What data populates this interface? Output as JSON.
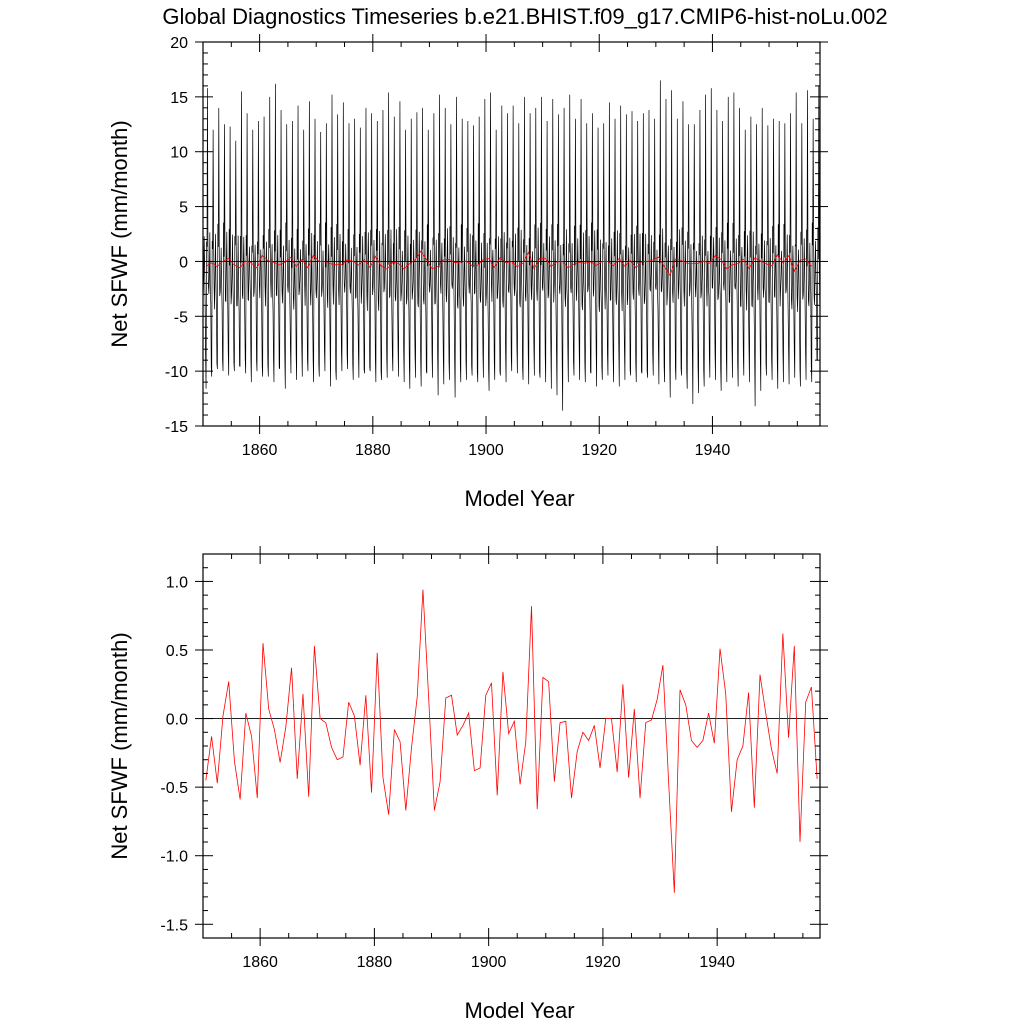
{
  "title": "Global Diagnostics Timeseries b.e21.BHIST.f09_g17.CMIP6-hist-noLu.002",
  "colors": {
    "monthly": "#000000",
    "annual": "#ff0000",
    "zero_line": "#000000"
  },
  "chart_data": [
    {
      "type": "line",
      "xlabel": "Model Year",
      "ylabel": "Net SFWF (mm/month)",
      "xlim": [
        1850,
        1959
      ],
      "ylim": [
        -15,
        20
      ],
      "xticks": [
        1860,
        1880,
        1900,
        1920,
        1940
      ],
      "xtick_labels": [
        "1860",
        "1880",
        "1900",
        "1920",
        "1940"
      ],
      "yticks": [
        -15,
        -10,
        -5,
        0,
        5,
        10,
        15,
        20
      ],
      "ytick_labels": [
        "-15",
        "-10",
        "-5",
        "0",
        "5",
        "10",
        "15",
        "20"
      ],
      "reference_line": 0,
      "grid": false,
      "series": [
        {
          "style": "monthly seasonal cycle, 12 values per year (approximate)",
          "x_start": 1850.04,
          "x_step": 0.0833333,
          "annual_cycle_approx": [
            -3.5,
            -1.0,
            2.0,
            -1.5,
            -4.0,
            -9.0,
            -11.0,
            2.5,
            0.5,
            15.0,
            1.0,
            -3.0
          ],
          "annual_peak_max": [
            15.8,
            12.0,
            14.0,
            12.5,
            12.3,
            11.0,
            15.5,
            13.5,
            12.0,
            12.8,
            13.2,
            15.0,
            16.2,
            13.8,
            12.5,
            12.8,
            14.2,
            12.0,
            14.6,
            13.0,
            11.8,
            12.6,
            15.2,
            13.4,
            14.5,
            12.6,
            13.0,
            12.2,
            14.0,
            13.5,
            12.8,
            13.8,
            15.4,
            13.2,
            14.6,
            12.0,
            13.0,
            13.6,
            14.0,
            12.0,
            13.5,
            15.2,
            14.0,
            12.5,
            15.0,
            13.0,
            12.8,
            12.4,
            13.2,
            14.8,
            15.4,
            12.0,
            14.2,
            13.5,
            14.2,
            12.6,
            15.0,
            13.5,
            14.0,
            15.0,
            12.8,
            14.8,
            13.4,
            14.0,
            15.2,
            13.0,
            14.8,
            12.6,
            13.5,
            12.2,
            12.6,
            14.5,
            13.0,
            14.2,
            13.4,
            13.7,
            12.8,
            13.5,
            13.8,
            13.0,
            16.5,
            14.8,
            15.6,
            13.0,
            14.6,
            12.5,
            12.5,
            13.8,
            15.2,
            15.8,
            13.8,
            12.8,
            15.0,
            15.4,
            14.0,
            12.0,
            13.2,
            12.5,
            14.0,
            12.4,
            13.0,
            12.8,
            12.6,
            13.5,
            15.4,
            12.6,
            15.6,
            13.0,
            16.0
          ],
          "annual_trough_min": [
            -11.6,
            -10.5,
            -9.8,
            -10.0,
            -10.4,
            -10.0,
            -9.6,
            -10.2,
            -11.0,
            -10.0,
            -10.5,
            -10.5,
            -11.0,
            -9.8,
            -11.6,
            -10.2,
            -10.8,
            -10.5,
            -10.0,
            -11.0,
            -10.5,
            -10.0,
            -11.4,
            -10.8,
            -10.0,
            -9.8,
            -10.8,
            -10.6,
            -10.2,
            -10.0,
            -11.0,
            -10.8,
            -10.6,
            -10.0,
            -10.5,
            -11.0,
            -11.6,
            -10.6,
            -11.4,
            -10.2,
            -10.6,
            -12.2,
            -11.2,
            -10.8,
            -12.4,
            -11.0,
            -10.8,
            -10.4,
            -11.0,
            -10.6,
            -11.8,
            -10.8,
            -10.4,
            -11.0,
            -10.0,
            -10.2,
            -10.8,
            -11.2,
            -10.4,
            -10.6,
            -11.0,
            -11.6,
            -12.2,
            -13.6,
            -11.0,
            -10.4,
            -10.8,
            -11.0,
            -10.2,
            -11.4,
            -10.8,
            -10.4,
            -11.0,
            -11.4,
            -10.8,
            -10.4,
            -11.0,
            -10.2,
            -10.6,
            -10.4,
            -11.2,
            -11.0,
            -12.4,
            -10.8,
            -10.4,
            -11.6,
            -13.0,
            -12.0,
            -11.4,
            -10.6,
            -10.8,
            -11.8,
            -11.0,
            -10.6,
            -11.4,
            -10.4,
            -11.0,
            -13.2,
            -11.8,
            -10.4,
            -10.8,
            -11.6,
            -11.0,
            -11.2,
            -10.6,
            -11.4,
            -10.8,
            -11.0,
            -9.0
          ]
        },
        {
          "style": "annual mean",
          "x_start": 1850.5,
          "x_step": 1
        }
      ]
    },
    {
      "type": "line",
      "xlabel": "Model Year",
      "ylabel": "Net SFWF (mm/month)",
      "xlim": [
        1850,
        1958
      ],
      "ylim": [
        -1.6,
        1.2
      ],
      "xticks": [
        1860,
        1880,
        1900,
        1920,
        1940
      ],
      "xtick_labels": [
        "1860",
        "1880",
        "1900",
        "1920",
        "1940"
      ],
      "yticks": [
        -1.5,
        -1.0,
        -0.5,
        0.0,
        0.5,
        1.0
      ],
      "ytick_labels": [
        "-1.5",
        "-1.0",
        "-0.5",
        "0.0",
        "0.5",
        "1.0"
      ],
      "reference_line": 0,
      "grid": false,
      "series": [
        {
          "style": "annual mean",
          "x_start": 1850.5,
          "x_step": 1,
          "values": [
            -0.45,
            -0.13,
            -0.47,
            0.02,
            0.27,
            -0.31,
            -0.59,
            0.04,
            -0.13,
            -0.58,
            0.55,
            0.07,
            -0.08,
            -0.32,
            -0.06,
            0.37,
            -0.44,
            0.18,
            -0.57,
            0.53,
            0.0,
            -0.03,
            -0.21,
            -0.3,
            -0.28,
            0.12,
            0.02,
            -0.34,
            0.17,
            -0.54,
            0.48,
            -0.43,
            -0.7,
            -0.08,
            -0.17,
            -0.67,
            -0.21,
            0.16,
            0.94,
            0.15,
            -0.67,
            -0.46,
            0.15,
            0.17,
            -0.12,
            -0.05,
            0.04,
            -0.38,
            -0.36,
            0.17,
            0.26,
            -0.56,
            0.34,
            -0.11,
            -0.02,
            -0.48,
            -0.17,
            0.82,
            -0.66,
            0.3,
            0.27,
            -0.46,
            -0.03,
            -0.02,
            -0.58,
            -0.24,
            -0.1,
            -0.16,
            -0.05,
            -0.36,
            0.0,
            0.0,
            -0.39,
            0.25,
            -0.43,
            0.07,
            -0.58,
            -0.03,
            -0.01,
            0.14,
            0.39,
            -0.46,
            -1.27,
            0.21,
            0.1,
            -0.16,
            -0.21,
            -0.16,
            0.04,
            -0.18,
            0.51,
            0.18,
            -0.68,
            -0.3,
            -0.2,
            0.19,
            -0.65,
            0.32,
            0.04,
            -0.22,
            -0.4,
            0.62,
            -0.14,
            0.53,
            -0.9,
            0.12,
            0.23,
            -0.44
          ]
        }
      ]
    }
  ]
}
